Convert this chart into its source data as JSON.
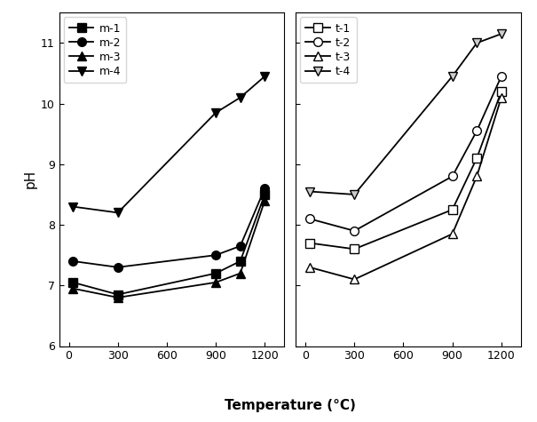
{
  "left": {
    "x": [
      25,
      300,
      900,
      1050,
      1200
    ],
    "m1": [
      7.05,
      6.85,
      7.2,
      7.4,
      8.5
    ],
    "m2": [
      7.4,
      7.3,
      7.5,
      7.65,
      8.6
    ],
    "m3": [
      6.95,
      6.8,
      7.05,
      7.2,
      8.4
    ],
    "m4": [
      8.3,
      8.2,
      9.85,
      10.1,
      10.45
    ],
    "labels": [
      "m-1",
      "m-2",
      "m-3",
      "m-4"
    ],
    "markers": [
      "s",
      "o",
      "^",
      "v"
    ],
    "mfc": [
      "black",
      "black",
      "black",
      "black"
    ],
    "ylim": [
      6,
      11.5
    ],
    "yticks": [
      6,
      7,
      8,
      9,
      10,
      11
    ],
    "xticks": [
      0,
      300,
      600,
      900,
      1200
    ],
    "xlim": [
      -60,
      1320
    ],
    "ylabel": "pH"
  },
  "right": {
    "x": [
      25,
      300,
      900,
      1050,
      1200
    ],
    "t1": [
      7.7,
      7.6,
      8.25,
      9.1,
      10.2
    ],
    "t2": [
      8.1,
      7.9,
      8.8,
      9.55,
      10.45
    ],
    "t3": [
      7.3,
      7.1,
      7.85,
      8.8,
      10.1
    ],
    "t4": [
      8.55,
      8.5,
      10.45,
      11.0,
      11.15
    ],
    "labels": [
      "t-1",
      "t-2",
      "t-3",
      "t-4"
    ],
    "markers": [
      "s",
      "o",
      "^",
      "v"
    ],
    "mfc_open": [
      "white",
      "white",
      "white",
      "#cccccc"
    ],
    "ylim": [
      6,
      11.5
    ],
    "yticks": [
      6,
      7,
      8,
      9,
      10,
      11
    ],
    "xticks": [
      0,
      300,
      600,
      900,
      1200
    ],
    "xlim": [
      -60,
      1320
    ]
  },
  "xlabel": "Temperature (°C)",
  "linewidth": 1.3,
  "markersize": 7,
  "color": "black",
  "legend_fontsize": 9,
  "tick_labelsize": 9,
  "ylabel_fontsize": 11,
  "xlabel_fontsize": 11
}
